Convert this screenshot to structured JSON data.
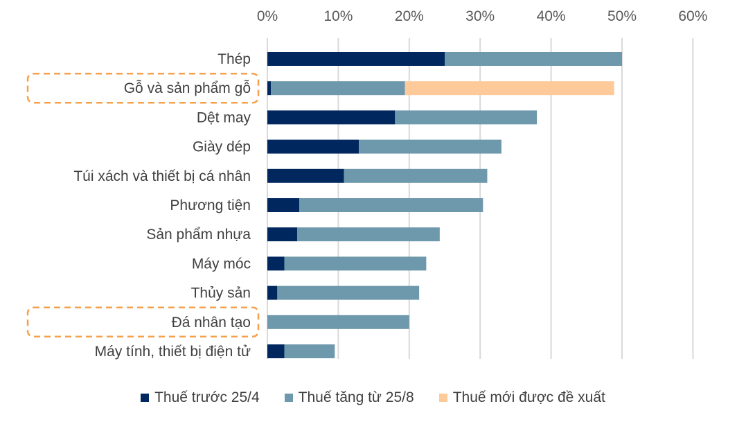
{
  "chart_data": {
    "type": "bar",
    "orientation": "horizontal",
    "stacked": true,
    "title": "",
    "xlabel": "",
    "ylabel": "",
    "xlim": [
      0,
      60
    ],
    "x_ticks": [
      "0%",
      "10%",
      "20%",
      "30%",
      "40%",
      "50%",
      "60%"
    ],
    "grid": true,
    "legend_position": "bottom",
    "categories": [
      "Thép",
      "Gỗ và sản phẩm gỗ",
      "Dệt may",
      "Giày dép",
      "Túi xách và thiết bị cá nhân",
      "Phương tiện",
      "Sản phẩm nhựa",
      "Máy móc",
      "Thủy sản",
      "Đá nhân tạo",
      "Máy tính, thiết bị điện tử"
    ],
    "highlighted": [
      "Gỗ và sản phẩm gỗ",
      "Đá nhân tạo"
    ],
    "series": [
      {
        "name": "Thuế trước 25/4",
        "color": "#00285e",
        "values": [
          25,
          0.5,
          18,
          12.9,
          10.8,
          4.5,
          4.2,
          2.4,
          1.4,
          0,
          2.4
        ]
      },
      {
        "name": "Thuế tăng từ 25/8",
        "color": "#6e98ab",
        "values": [
          25,
          18.9,
          20,
          20.1,
          20.2,
          25.9,
          20.1,
          20,
          20,
          20,
          7.1
        ]
      },
      {
        "name": "Thuế mới được đề xuất",
        "color": "#ffca99",
        "values": [
          0,
          29.5,
          0,
          0,
          0,
          0,
          0,
          0,
          0,
          0,
          0
        ]
      }
    ]
  }
}
